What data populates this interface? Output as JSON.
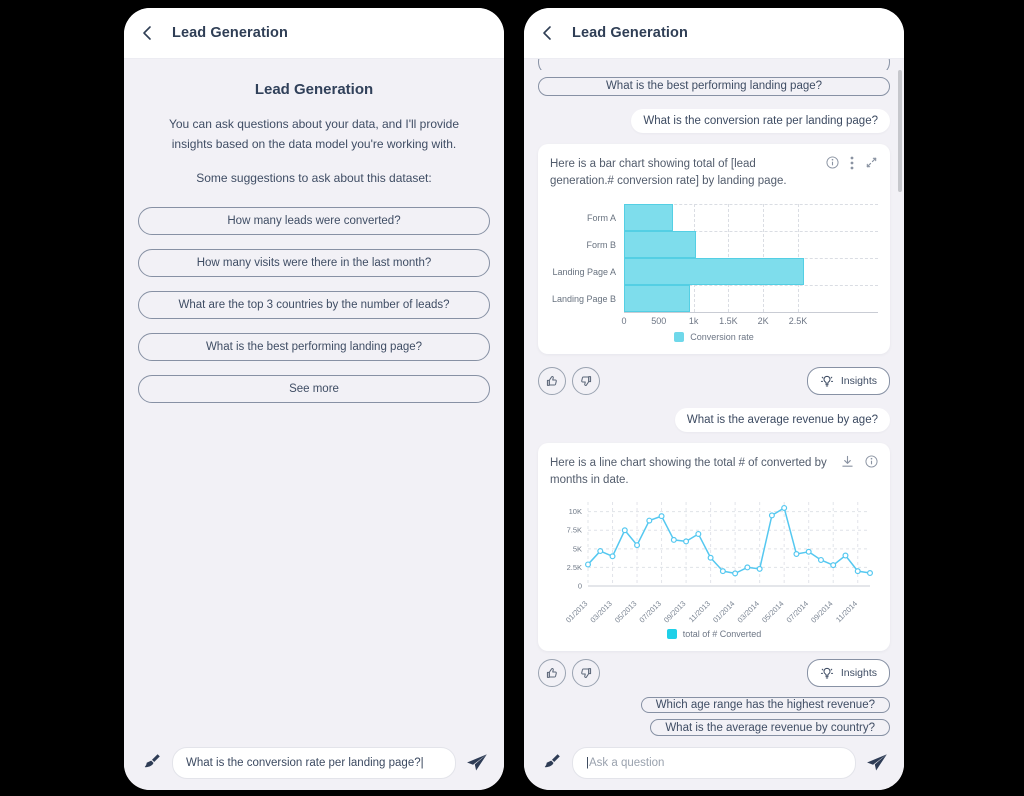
{
  "colors": {
    "background": "#000000",
    "phone_bg": "#f2f1f6",
    "text_dark": "#36455e",
    "bar_cyan": "#7eddec",
    "bar_legend_cyan": "#6fd8ea",
    "line_blue": "#55c8f0",
    "line_legend_cyan": "#1fd0e8"
  },
  "left_phone": {
    "header_title": "Lead Generation",
    "welcome_title": "Lead Generation",
    "welcome_text": "You can ask questions about your data, and I'll provide insights based on the data model you're working with.",
    "suggestions_label": "Some suggestions to ask about this dataset:",
    "suggestions": [
      "How many leads were converted?",
      "How many visits were there in the last month?",
      "What are the top 3 countries by the number of leads?",
      "What is the best performing landing page?",
      "See more"
    ],
    "input_value": "What is the conversion rate per landing page?",
    "input_caret": "|"
  },
  "right_phone": {
    "header_title": "Lead Generation",
    "suggestion_pill": "What is the best performing landing page?",
    "user_message_1": "What is the conversion rate per landing page?",
    "bar_card_title": "Here is a bar chart showing total of [lead generation.# conversion rate] by landing page.",
    "insights_label": "Insights",
    "user_message_2": "What is the average revenue by age?",
    "line_card_title": "Here is a line chart showing the total # of converted by months in date.",
    "trailing_suggestions": [
      "Which age range has the highest revenue?",
      "What is the average revenue by country?"
    ],
    "input_caret": "|",
    "input_placeholder": "Ask a question"
  },
  "chart_data": [
    {
      "type": "bar",
      "orientation": "horizontal",
      "title": "total of [lead generation.# conversion rate] by landing page",
      "categories": [
        "Form A",
        "Form B",
        "Landing Page A",
        "Landing Page B"
      ],
      "values": [
        700,
        1040,
        2580,
        950
      ],
      "xticks": [
        {
          "v": 0,
          "label": "0"
        },
        {
          "v": 500,
          "label": "500"
        },
        {
          "v": 1000,
          "label": "1k"
        },
        {
          "v": 1500,
          "label": "1.5K"
        },
        {
          "v": 2000,
          "label": "2K"
        },
        {
          "v": 2500,
          "label": "2.5K"
        }
      ],
      "xlim": [
        0,
        3650
      ],
      "grid": true,
      "legend": "Conversion rate",
      "legend_position": "bottom",
      "bar_color": "#7eddec"
    },
    {
      "type": "line",
      "title": "total # of converted by months in date",
      "x": [
        "01/2013",
        "02/2013",
        "03/2013",
        "04/2013",
        "05/2013",
        "06/2013",
        "07/2013",
        "08/2013",
        "09/2013",
        "10/2013",
        "11/2013",
        "12/2013",
        "01/2014",
        "02/2014",
        "03/2014",
        "04/2014",
        "05/2014",
        "06/2014",
        "07/2014",
        "08/2014",
        "09/2014",
        "10/2014",
        "11/2014",
        "12/2014"
      ],
      "values": [
        2900,
        4700,
        4000,
        7500,
        5500,
        8800,
        9400,
        6200,
        6000,
        7000,
        3800,
        2000,
        1700,
        2500,
        2300,
        9500,
        10500,
        4300,
        4600,
        3500,
        2800,
        4100,
        2000,
        1750
      ],
      "label_every": 2,
      "yticks": [
        {
          "v": 0,
          "label": "0"
        },
        {
          "v": 2500,
          "label": "2.5K"
        },
        {
          "v": 5000,
          "label": "5K"
        },
        {
          "v": 7500,
          "label": "7.5K"
        },
        {
          "v": 10000,
          "label": "10K"
        }
      ],
      "ylim": [
        0,
        11300
      ],
      "grid": true,
      "legend": "total of # Converted",
      "legend_position": "bottom",
      "line_color": "#55c8f0",
      "legend_color": "#1fd0e8"
    }
  ]
}
